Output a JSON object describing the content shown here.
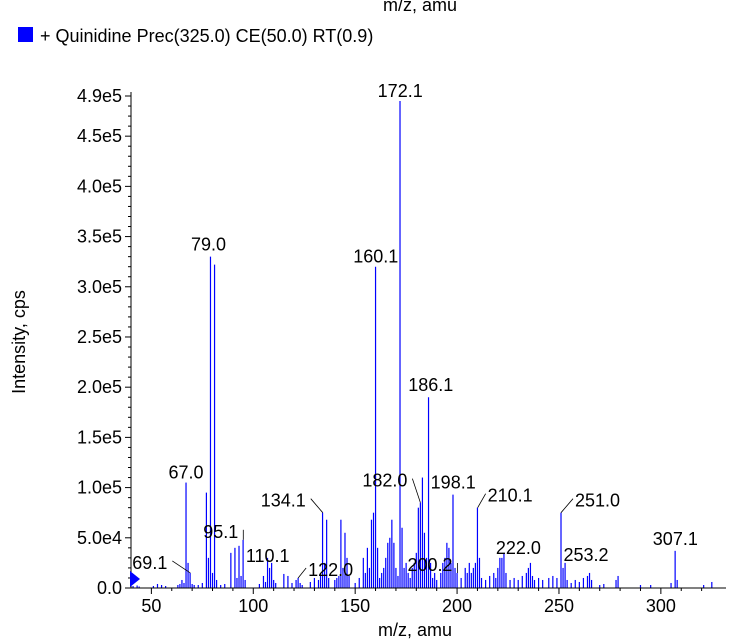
{
  "window": {
    "top_cut_text": "m/z, amu"
  },
  "legend": {
    "swatch_color": "#0000ff",
    "text": "+ Quinidine Prec(325.0) CE(50.0) RT(0.9)"
  },
  "chart_data": {
    "type": "bar",
    "xlabel": "m/z, amu",
    "ylabel": "Intensity, cps",
    "xlim": [
      40,
      330
    ],
    "ylim": [
      0,
      490000
    ],
    "xticks": [
      50,
      100,
      150,
      200,
      250,
      300
    ],
    "yticks": [
      {
        "v": 0,
        "t": "0.0"
      },
      {
        "v": 50000,
        "t": "5.0e4"
      },
      {
        "v": 100000,
        "t": "1.0e5"
      },
      {
        "v": 150000,
        "t": "1.5e5"
      },
      {
        "v": 200000,
        "t": "2.0e5"
      },
      {
        "v": 250000,
        "t": "2.5e5"
      },
      {
        "v": 300000,
        "t": "3.0e5"
      },
      {
        "v": 350000,
        "t": "3.5e5"
      },
      {
        "v": 400000,
        "t": "4.0e5"
      },
      {
        "v": 450000,
        "t": "4.5e5"
      },
      {
        "v": 490000,
        "t": "4.9e5"
      }
    ],
    "series_color": "#0000ff",
    "peaks": [
      [
        41,
        2000
      ],
      [
        43,
        2500
      ],
      [
        44,
        1500
      ],
      [
        51,
        2000
      ],
      [
        53,
        4000
      ],
      [
        55,
        3000
      ],
      [
        57,
        2000
      ],
      [
        63,
        3000
      ],
      [
        64,
        4000
      ],
      [
        65,
        8000
      ],
      [
        66,
        5000
      ],
      [
        67,
        105000
      ],
      [
        68,
        25000
      ],
      [
        69,
        15000
      ],
      [
        70,
        4000
      ],
      [
        71,
        3000
      ],
      [
        73,
        3000
      ],
      [
        75,
        5000
      ],
      [
        77,
        95000
      ],
      [
        78,
        30000
      ],
      [
        79,
        330000
      ],
      [
        80,
        15000
      ],
      [
        81,
        322000
      ],
      [
        82,
        8000
      ],
      [
        84,
        3000
      ],
      [
        86,
        4000
      ],
      [
        89,
        35000
      ],
      [
        91,
        40000
      ],
      [
        92,
        10000
      ],
      [
        93,
        42000
      ],
      [
        94,
        12000
      ],
      [
        95,
        48000
      ],
      [
        96,
        8000
      ],
      [
        103,
        4000
      ],
      [
        105,
        12000
      ],
      [
        106,
        6000
      ],
      [
        107,
        30000
      ],
      [
        108,
        20000
      ],
      [
        109,
        25000
      ],
      [
        110,
        8000
      ],
      [
        111,
        5000
      ],
      [
        115,
        14000
      ],
      [
        117,
        12000
      ],
      [
        119,
        5000
      ],
      [
        121,
        8000
      ],
      [
        122,
        10000
      ],
      [
        123,
        5000
      ],
      [
        124,
        3000
      ],
      [
        128,
        6000
      ],
      [
        130,
        10000
      ],
      [
        132,
        8000
      ],
      [
        133,
        12000
      ],
      [
        134,
        75000
      ],
      [
        135,
        25000
      ],
      [
        136,
        68000
      ],
      [
        137,
        10000
      ],
      [
        140,
        8000
      ],
      [
        141,
        10000
      ],
      [
        142,
        12000
      ],
      [
        143,
        68000
      ],
      [
        144,
        20000
      ],
      [
        145,
        55000
      ],
      [
        146,
        30000
      ],
      [
        147,
        12000
      ],
      [
        150,
        5000
      ],
      [
        152,
        10000
      ],
      [
        154,
        30000
      ],
      [
        155,
        15000
      ],
      [
        156,
        40000
      ],
      [
        157,
        20000
      ],
      [
        158,
        68000
      ],
      [
        159,
        75000
      ],
      [
        160,
        320000
      ],
      [
        161,
        40000
      ],
      [
        162,
        10000
      ],
      [
        163,
        15000
      ],
      [
        164,
        20000
      ],
      [
        165,
        30000
      ],
      [
        166,
        45000
      ],
      [
        167,
        50000
      ],
      [
        168,
        68000
      ],
      [
        169,
        45000
      ],
      [
        170,
        20000
      ],
      [
        171,
        12000
      ],
      [
        172,
        485000
      ],
      [
        173,
        60000
      ],
      [
        174,
        20000
      ],
      [
        175,
        25000
      ],
      [
        176,
        15000
      ],
      [
        177,
        10000
      ],
      [
        178,
        20000
      ],
      [
        179,
        25000
      ],
      [
        180,
        35000
      ],
      [
        181,
        80000
      ],
      [
        182,
        85000
      ],
      [
        183,
        110000
      ],
      [
        184,
        55000
      ],
      [
        185,
        30000
      ],
      [
        186,
        190000
      ],
      [
        187,
        25000
      ],
      [
        188,
        10000
      ],
      [
        189,
        15000
      ],
      [
        190,
        8000
      ],
      [
        192,
        15000
      ],
      [
        193,
        25000
      ],
      [
        194,
        30000
      ],
      [
        195,
        45000
      ],
      [
        196,
        40000
      ],
      [
        197,
        25000
      ],
      [
        198,
        93000
      ],
      [
        199,
        20000
      ],
      [
        200,
        15000
      ],
      [
        202,
        10000
      ],
      [
        204,
        20000
      ],
      [
        205,
        15000
      ],
      [
        206,
        25000
      ],
      [
        207,
        15000
      ],
      [
        208,
        20000
      ],
      [
        209,
        25000
      ],
      [
        210,
        80000
      ],
      [
        211,
        30000
      ],
      [
        212,
        10000
      ],
      [
        214,
        8000
      ],
      [
        216,
        12000
      ],
      [
        218,
        15000
      ],
      [
        219,
        10000
      ],
      [
        220,
        20000
      ],
      [
        221,
        30000
      ],
      [
        222,
        30000
      ],
      [
        223,
        35000
      ],
      [
        224,
        15000
      ],
      [
        226,
        8000
      ],
      [
        228,
        10000
      ],
      [
        230,
        8000
      ],
      [
        232,
        12000
      ],
      [
        234,
        15000
      ],
      [
        235,
        20000
      ],
      [
        236,
        25000
      ],
      [
        237,
        12000
      ],
      [
        238,
        8000
      ],
      [
        240,
        10000
      ],
      [
        242,
        8000
      ],
      [
        245,
        10000
      ],
      [
        247,
        12000
      ],
      [
        249,
        10000
      ],
      [
        251,
        75000
      ],
      [
        252,
        20000
      ],
      [
        253,
        25000
      ],
      [
        254,
        8000
      ],
      [
        256,
        5000
      ],
      [
        258,
        8000
      ],
      [
        260,
        6000
      ],
      [
        262,
        10000
      ],
      [
        264,
        12000
      ],
      [
        265,
        15000
      ],
      [
        266,
        8000
      ],
      [
        270,
        3000
      ],
      [
        272,
        4000
      ],
      [
        278,
        8000
      ],
      [
        279,
        12000
      ],
      [
        290,
        3000
      ],
      [
        295,
        3000
      ],
      [
        305,
        5000
      ],
      [
        307,
        37000
      ],
      [
        308,
        8000
      ],
      [
        321,
        3000
      ],
      [
        325,
        6000
      ]
    ],
    "annotations": [
      {
        "text": "172.1",
        "x": 172.1,
        "y": 485000
      },
      {
        "text": "79.0",
        "x": 79.0,
        "y": 330000
      },
      {
        "text": "160.1",
        "x": 160.1,
        "y": 320000
      },
      {
        "text": "186.1",
        "x": 186.1,
        "y": 190000
      },
      {
        "text": "67.0",
        "x": 67.0,
        "y": 105000
      },
      {
        "text": "198.1",
        "x": 198.1,
        "y": 93000
      },
      {
        "text": "134.1",
        "x": 134.1,
        "y": 75000
      },
      {
        "text": "182.0",
        "x": 182.0,
        "y": 85000
      },
      {
        "text": "210.1",
        "x": 210.1,
        "y": 80000
      },
      {
        "text": "251.0",
        "x": 251.0,
        "y": 75000
      },
      {
        "text": "95.1",
        "x": 95.1,
        "y": 48000
      },
      {
        "text": "307.1",
        "x": 307.1,
        "y": 37000
      },
      {
        "text": "222.0",
        "x": 222.0,
        "y": 30000
      },
      {
        "text": "200.2",
        "x": 200.2,
        "y": 15000
      },
      {
        "text": "253.2",
        "x": 253.2,
        "y": 25000
      },
      {
        "text": "110.1",
        "x": 110.1,
        "y": 8000
      },
      {
        "text": "69.1",
        "x": 69.1,
        "y": 15000
      },
      {
        "text": "122.0",
        "x": 122.0,
        "y": 10000
      }
    ]
  }
}
